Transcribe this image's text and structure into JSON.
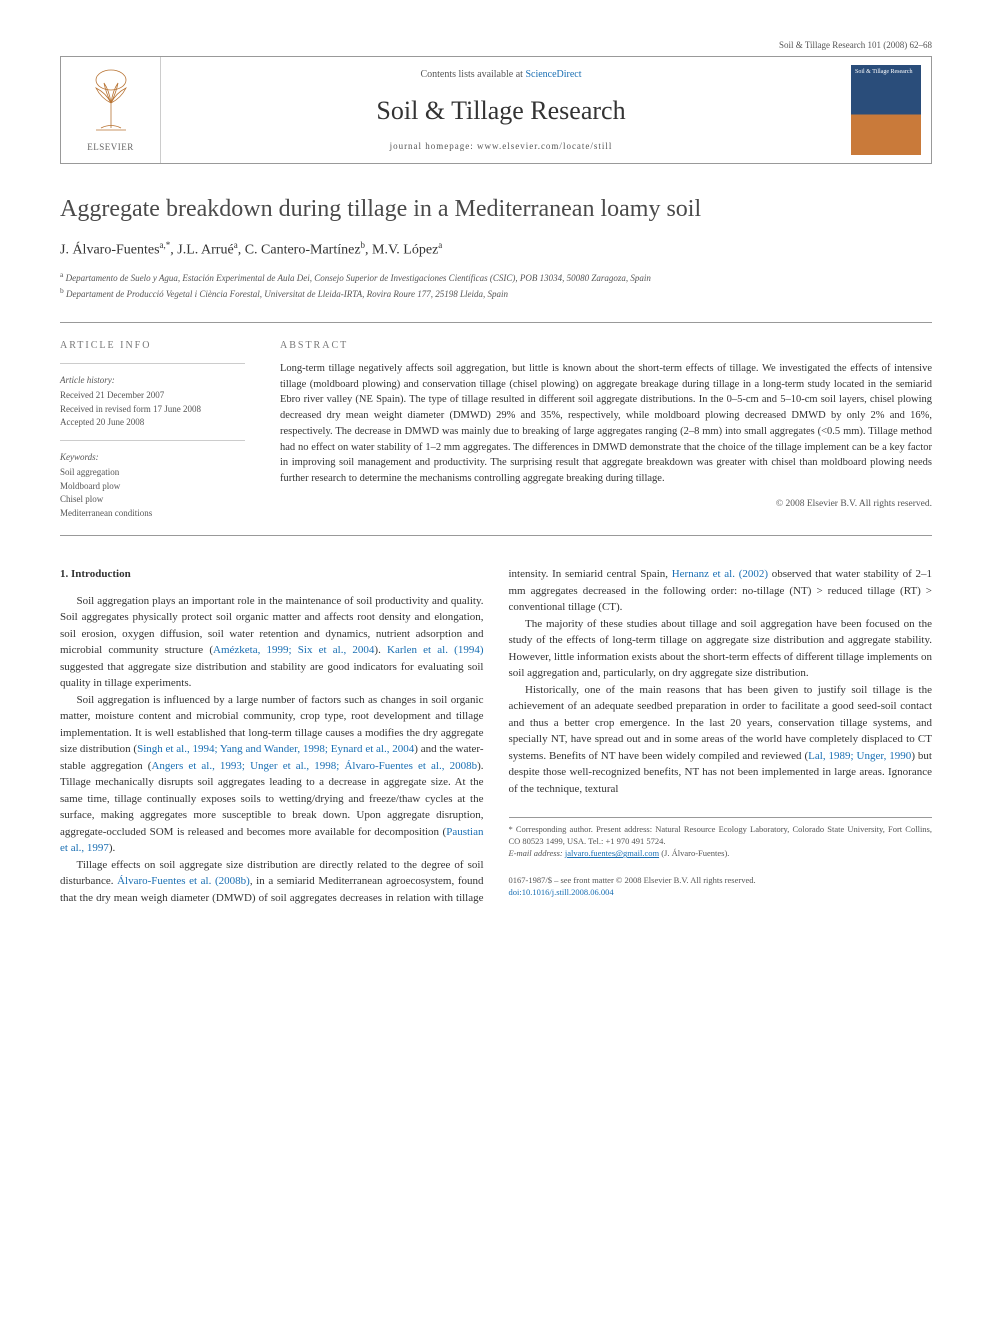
{
  "running_head": "Soil & Tillage Research 101 (2008) 62–68",
  "header": {
    "contents_prefix": "Contents lists available at ",
    "contents_link": "ScienceDirect",
    "journal_name": "Soil & Tillage Research",
    "homepage_label": "journal homepage: www.elsevier.com/locate/still",
    "elsevier_label": "ELSEVIER",
    "cover_label": "Soil & Tillage\nResearch"
  },
  "title": "Aggregate breakdown during tillage in a Mediterranean loamy soil",
  "authors_html": "J. Álvaro-Fuentes<sup>a,*</sup>, J.L. Arrué<sup>a</sup>, C. Cantero-Martínez<sup>b</sup>, M.V. López<sup>a</sup>",
  "affiliations": {
    "a": "Departamento de Suelo y Agua, Estación Experimental de Aula Dei, Consejo Superior de Investigaciones Científicas (CSIC), POB 13034, 50080 Zaragoza, Spain",
    "b": "Departament de Producció Vegetal i Ciència Forestal, Universitat de Lleida-IRTA, Rovira Roure 177, 25198 Lleida, Spain"
  },
  "article_info": {
    "heading": "ARTICLE INFO",
    "history_heading": "Article history:",
    "received": "Received 21 December 2007",
    "revised": "Received in revised form 17 June 2008",
    "accepted": "Accepted 20 June 2008",
    "keywords_heading": "Keywords:",
    "keywords": [
      "Soil aggregation",
      "Moldboard plow",
      "Chisel plow",
      "Mediterranean conditions"
    ]
  },
  "abstract": {
    "heading": "ABSTRACT",
    "text": "Long-term tillage negatively affects soil aggregation, but little is known about the short-term effects of tillage. We investigated the effects of intensive tillage (moldboard plowing) and conservation tillage (chisel plowing) on aggregate breakage during tillage in a long-term study located in the semiarid Ebro river valley (NE Spain). The type of tillage resulted in different soil aggregate distributions. In the 0–5-cm and 5–10-cm soil layers, chisel plowing decreased dry mean weight diameter (DMWD) 29% and 35%, respectively, while moldboard plowing decreased DMWD by only 2% and 16%, respectively. The decrease in DMWD was mainly due to breaking of large aggregates ranging (2–8 mm) into small aggregates (<0.5 mm). Tillage method had no effect on water stability of 1–2 mm aggregates. The differences in DMWD demonstrate that the choice of the tillage implement can be a key factor in improving soil management and productivity. The surprising result that aggregate breakdown was greater with chisel than moldboard plowing needs further research to determine the mechanisms controlling aggregate breaking during tillage.",
    "copyright": "© 2008 Elsevier B.V. All rights reserved."
  },
  "body": {
    "section1_heading": "1. Introduction",
    "p1": "Soil aggregation plays an important role in the maintenance of soil productivity and quality. Soil aggregates physically protect soil organic matter and affects root density and elongation, soil erosion, oxygen diffusion, soil water retention and dynamics, nutrient adsorption and microbial community structure (",
    "p1_cite1": "Amézketa, 1999; Six et al., 2004",
    "p1_mid": "). ",
    "p1_cite2": "Karlen et al. (1994)",
    "p1_end": " suggested that aggregate size distribution and stability are good indicators for evaluating soil quality in tillage experiments.",
    "p2a": "Soil aggregation is influenced by a large number of factors such as changes in soil organic matter, moisture content and microbial community, crop type, root development and tillage implementation. It is well established that long-term tillage causes a modifies the dry aggregate size distribution (",
    "p2_cite1": "Singh et al., 1994; Yang and Wander, 1998; Eynard et al., 2004",
    "p2b": ") and the water-stable aggregation (",
    "p2_cite2": "Angers et al., 1993; Unger et al., 1998; Álvaro-Fuentes et al., 2008b",
    "p2c": "). Tillage mechanically disrupts soil aggregates leading to a decrease in aggregate size. At the same time, tillage continually exposes soils to wetting/drying and freeze/thaw cycles at the surface, making aggregates more susceptible to break down.",
    "p2d": "Upon aggregate disruption, aggregate-occluded SOM is released and becomes more available for decomposition (",
    "p2_cite3": "Paustian et al., 1997",
    "p2e": ").",
    "p3a": "Tillage effects on soil aggregate size distribution are directly related to the degree of soil disturbance. ",
    "p3_cite1": "Álvaro-Fuentes et al. (2008b)",
    "p3b": ", in a semiarid Mediterranean agroecosystem, found that the dry mean weigh diameter (DMWD) of soil aggregates decreases in relation with tillage intensity. In semiarid central Spain, ",
    "p3_cite2": "Hernanz et al. (2002)",
    "p3c": " observed that water stability of 2–1 mm aggregates decreased in the following order: no-tillage (NT) > reduced tillage (RT) > conventional tillage (CT).",
    "p4": "The majority of these studies about tillage and soil aggregation have been focused on the study of the effects of long-term tillage on aggregate size distribution and aggregate stability. However, little information exists about the short-term effects of different tillage implements on soil aggregation and, particularly, on dry aggregate size distribution.",
    "p5a": "Historically, one of the main reasons that has been given to justify soil tillage is the achievement of an adequate seedbed preparation in order to facilitate a good seed-soil contact and thus a better crop emergence. In the last 20 years, conservation tillage systems, and specially NT, have spread out and in some areas of the world have completely displaced to CT systems. Benefits of NT have been widely compiled and reviewed (",
    "p5_cite1": "Lal, 1989; Unger, 1990",
    "p5b": ") but despite those well-recognized benefits, NT has not been implemented in large areas. Ignorance of the technique, textural"
  },
  "footnote": {
    "corresponding": "* Corresponding author. Present address: Natural Resource Ecology Laboratory, Colorado State University, Fort Collins, CO 80523 1499, USA. Tel.: +1 970 491 5724.",
    "email_label": "E-mail address:",
    "email": "jalvaro.fuentes@gmail.com",
    "email_who": "(J. Álvaro-Fuentes)."
  },
  "footer": {
    "issn_line": "0167-1987/$ – see front matter © 2008 Elsevier B.V. All rights reserved.",
    "doi": "doi:10.1016/j.still.2008.06.004"
  },
  "colors": {
    "link": "#1a6fb3",
    "rule": "#999999",
    "text": "#333333",
    "muted": "#555555"
  }
}
